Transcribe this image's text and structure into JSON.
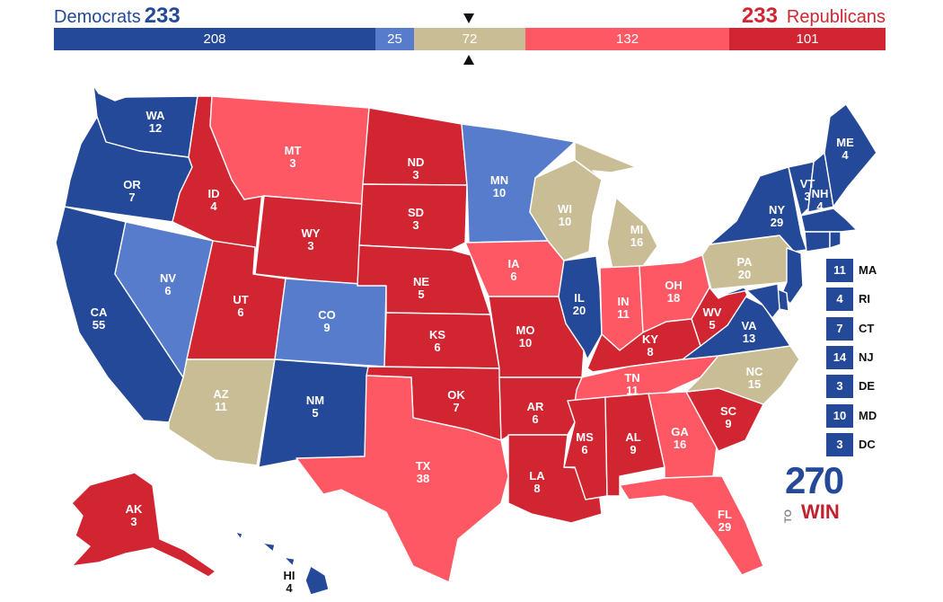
{
  "header": {
    "dem_label": "Democrats",
    "dem_total": "233",
    "rep_label": "Republicans",
    "rep_total": "233"
  },
  "colors": {
    "safe_dem": "#244999",
    "likely_dem": "#577ccc",
    "tossup": "#c9bd96",
    "likely_rep": "#ff5865",
    "safe_rep": "#d22532"
  },
  "bar": [
    {
      "name": "safe-dem",
      "value": 208,
      "label": "208",
      "color": "#244999"
    },
    {
      "name": "lean-dem",
      "value": 25,
      "label": "25",
      "color": "#577ccc"
    },
    {
      "name": "tossup",
      "value": 72,
      "label": "72",
      "color": "#c9bd96"
    },
    {
      "name": "lean-rep",
      "value": 132,
      "label": "132",
      "color": "#ff5865"
    },
    {
      "name": "safe-rep",
      "value": 101,
      "label": "101",
      "color": "#d22532"
    }
  ],
  "states": {
    "WA": {
      "abbr": "WA",
      "ev": "12",
      "color": "#244999"
    },
    "OR": {
      "abbr": "OR",
      "ev": "7",
      "color": "#244999"
    },
    "CA": {
      "abbr": "CA",
      "ev": "55",
      "color": "#244999"
    },
    "NV": {
      "abbr": "NV",
      "ev": "6",
      "color": "#577ccc"
    },
    "ID": {
      "abbr": "ID",
      "ev": "4",
      "color": "#d22532"
    },
    "MT": {
      "abbr": "MT",
      "ev": "3",
      "color": "#ff5865"
    },
    "WY": {
      "abbr": "WY",
      "ev": "3",
      "color": "#d22532"
    },
    "UT": {
      "abbr": "UT",
      "ev": "6",
      "color": "#d22532"
    },
    "AZ": {
      "abbr": "AZ",
      "ev": "11",
      "color": "#c9bd96"
    },
    "CO": {
      "abbr": "CO",
      "ev": "9",
      "color": "#577ccc"
    },
    "NM": {
      "abbr": "NM",
      "ev": "5",
      "color": "#244999"
    },
    "ND": {
      "abbr": "ND",
      "ev": "3",
      "color": "#d22532"
    },
    "SD": {
      "abbr": "SD",
      "ev": "3",
      "color": "#d22532"
    },
    "NE": {
      "abbr": "NE",
      "ev": "5",
      "color": "#d22532"
    },
    "KS": {
      "abbr": "KS",
      "ev": "6",
      "color": "#d22532"
    },
    "OK": {
      "abbr": "OK",
      "ev": "7",
      "color": "#d22532"
    },
    "TX": {
      "abbr": "TX",
      "ev": "38",
      "color": "#ff5865"
    },
    "MN": {
      "abbr": "MN",
      "ev": "10",
      "color": "#577ccc"
    },
    "IA": {
      "abbr": "IA",
      "ev": "6",
      "color": "#ff5865"
    },
    "MO": {
      "abbr": "MO",
      "ev": "10",
      "color": "#d22532"
    },
    "AR": {
      "abbr": "AR",
      "ev": "6",
      "color": "#d22532"
    },
    "LA": {
      "abbr": "LA",
      "ev": "8",
      "color": "#d22532"
    },
    "WI": {
      "abbr": "WI",
      "ev": "10",
      "color": "#c9bd96"
    },
    "IL": {
      "abbr": "IL",
      "ev": "20",
      "color": "#244999"
    },
    "MI": {
      "abbr": "MI",
      "ev": "16",
      "color": "#c9bd96"
    },
    "IN": {
      "abbr": "IN",
      "ev": "11",
      "color": "#ff5865"
    },
    "OH": {
      "abbr": "OH",
      "ev": "18",
      "color": "#ff5865"
    },
    "KY": {
      "abbr": "KY",
      "ev": "8",
      "color": "#d22532"
    },
    "TN": {
      "abbr": "TN",
      "ev": "11",
      "color": "#ff5865"
    },
    "MS": {
      "abbr": "MS",
      "ev": "6",
      "color": "#d22532"
    },
    "AL": {
      "abbr": "AL",
      "ev": "9",
      "color": "#d22532"
    },
    "GA": {
      "abbr": "GA",
      "ev": "16",
      "color": "#ff5865"
    },
    "FL": {
      "abbr": "FL",
      "ev": "29",
      "color": "#ff5865"
    },
    "SC": {
      "abbr": "SC",
      "ev": "9",
      "color": "#d22532"
    },
    "NC": {
      "abbr": "NC",
      "ev": "15",
      "color": "#c9bd96"
    },
    "VA": {
      "abbr": "VA",
      "ev": "13",
      "color": "#244999"
    },
    "WV": {
      "abbr": "WV",
      "ev": "5",
      "color": "#d22532"
    },
    "PA": {
      "abbr": "PA",
      "ev": "20",
      "color": "#c9bd96"
    },
    "NY": {
      "abbr": "NY",
      "ev": "29",
      "color": "#244999"
    },
    "VT": {
      "abbr": "VT",
      "ev": "3",
      "color": "#244999"
    },
    "NH": {
      "abbr": "NH",
      "ev": "4",
      "color": "#244999"
    },
    "ME": {
      "abbr": "ME",
      "ev": "4",
      "color": "#244999"
    },
    "AK": {
      "abbr": "AK",
      "ev": "3",
      "color": "#d22532"
    },
    "HI": {
      "abbr": "HI",
      "ev": "4",
      "color": "#244999"
    }
  },
  "small_states": [
    {
      "abbr": "MA",
      "ev": "11",
      "color": "#244999"
    },
    {
      "abbr": "RI",
      "ev": "4",
      "color": "#244999"
    },
    {
      "abbr": "CT",
      "ev": "7",
      "color": "#244999"
    },
    {
      "abbr": "NJ",
      "ev": "14",
      "color": "#244999"
    },
    {
      "abbr": "DE",
      "ev": "3",
      "color": "#244999"
    },
    {
      "abbr": "MD",
      "ev": "10",
      "color": "#244999"
    },
    {
      "abbr": "DC",
      "ev": "3",
      "color": "#244999"
    }
  ],
  "logo": {
    "number": "270",
    "to": "TO",
    "win": "WIN"
  }
}
